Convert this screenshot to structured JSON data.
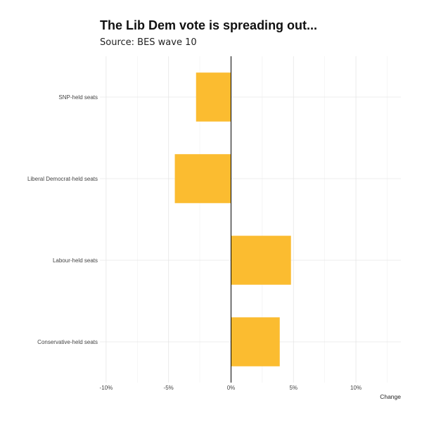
{
  "chart_data": {
    "type": "bar",
    "orientation": "horizontal",
    "title": "The Lib Dem vote is spreading out...",
    "subtitle": "Source: BES wave 10",
    "xlabel": "Change",
    "ylabel": "",
    "categories": [
      "SNP-held seats",
      "Liberal Democrat-held seats",
      "Labour-held seats",
      "Conservative-held seats"
    ],
    "values": [
      -2.8,
      -4.5,
      4.8,
      3.9
    ],
    "xlim": [
      -10.5,
      13.6
    ],
    "x_ticks": [
      -10,
      -5,
      0,
      5,
      10
    ],
    "x_tick_labels": [
      "-10%",
      "-5%",
      "0%",
      "5%",
      "10%"
    ],
    "bar_color": "#fbbc30",
    "zero_line_color": "#000000",
    "grid": true,
    "legend": "none"
  }
}
